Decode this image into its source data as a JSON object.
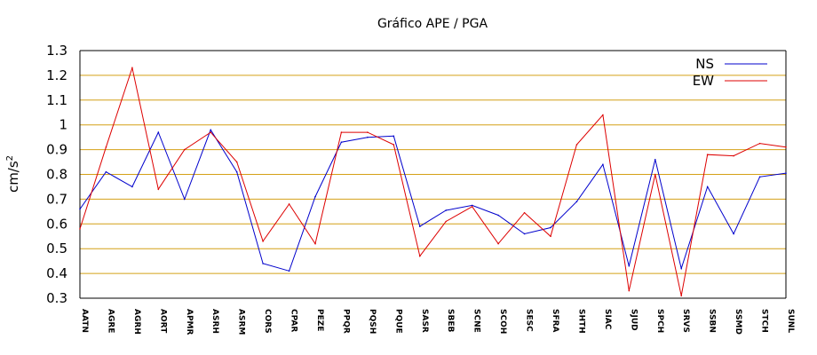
{
  "chart_data": {
    "type": "line",
    "title": "Gráfico  APE / PGA",
    "xlabel": "",
    "ylabel": "cm/s",
    "ylabel_superscript": "2",
    "ylim": [
      0.3,
      1.3
    ],
    "yticks": [
      "0.3",
      "0.4",
      "0.5",
      "0.6",
      "0.7",
      "0.8",
      "0.9",
      "1",
      "1.1",
      "1.2",
      "1.3"
    ],
    "grid": "horizontal",
    "legend_position": "top-right",
    "categories": [
      "AATN",
      "AGRE",
      "AGRH",
      "AORT",
      "APMR",
      "ASRH",
      "ASRM",
      "CORS",
      "CPAR",
      "PEZE",
      "PPQR",
      "PQSH",
      "PQUE",
      "SASR",
      "SBEB",
      "SCNE",
      "SCOH",
      "SESC",
      "SFRA",
      "SHTH",
      "SIAC",
      "SJUD",
      "SPCH",
      "SRVS",
      "SSBN",
      "SSMD",
      "STCH",
      "SUNL"
    ],
    "series": [
      {
        "name": "NS",
        "color": "#0000cc",
        "values": [
          0.66,
          0.81,
          0.75,
          0.97,
          0.7,
          0.98,
          0.81,
          0.44,
          0.41,
          0.71,
          0.93,
          0.95,
          0.955,
          0.59,
          0.655,
          0.675,
          0.635,
          0.56,
          0.585,
          0.69,
          0.84,
          0.43,
          0.86,
          0.42,
          0.75,
          0.56,
          0.79,
          0.805
        ]
      },
      {
        "name": "EW",
        "color": "#dd0000",
        "values": [
          0.58,
          0.91,
          1.23,
          0.74,
          0.9,
          0.97,
          0.85,
          0.53,
          0.68,
          0.52,
          0.97,
          0.97,
          0.92,
          0.47,
          0.61,
          0.67,
          0.52,
          0.645,
          0.55,
          0.92,
          1.04,
          0.33,
          0.8,
          0.31,
          0.88,
          0.875,
          0.925,
          0.91
        ]
      }
    ],
    "gridline_color": "#d4a017",
    "axis_color": "#000000"
  }
}
